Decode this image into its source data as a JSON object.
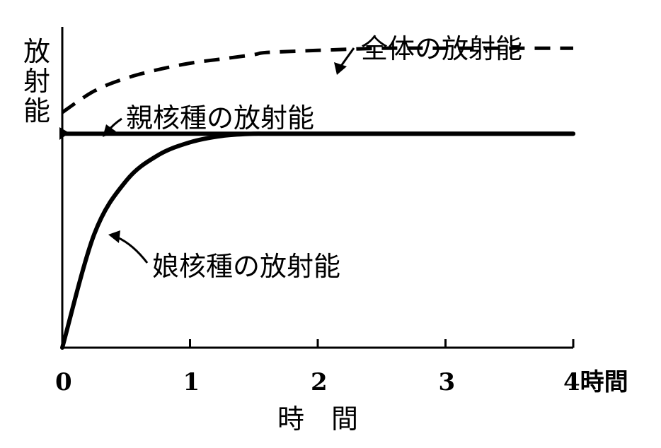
{
  "chart_data": {
    "type": "line",
    "x": [
      0,
      0.25,
      0.5,
      0.75,
      1,
      1.25,
      1.5,
      1.6,
      2,
      2.5,
      3,
      3.5,
      4
    ],
    "xticks": [
      "0",
      "1",
      "2",
      "3"
    ],
    "xlabel": "時　間",
    "xlabel_end": "4時間",
    "ylabel": "放射能",
    "xlim": [
      0,
      4
    ],
    "ylim": [
      0,
      1.5
    ],
    "series": [
      {
        "name": "全体の放射能",
        "style": "dashed",
        "values": [
          1.1,
          1.2,
          1.26,
          1.3,
          1.33,
          1.35,
          1.37,
          1.38,
          1.39,
          1.4,
          1.4,
          1.4,
          1.4
        ]
      },
      {
        "name": "親核種の放射能",
        "style": "solid",
        "values": [
          1.0,
          1.0,
          1.0,
          1.0,
          1.0,
          1.0,
          1.0,
          1.0,
          1.0,
          1.0,
          1.0,
          1.0,
          1.0
        ]
      },
      {
        "name": "娘核種の放射能",
        "style": "solid",
        "values": [
          0,
          0.53,
          0.78,
          0.9,
          0.96,
          0.99,
          1.0,
          1.0,
          1.0,
          1.0,
          1.0,
          1.0,
          1.0
        ]
      }
    ],
    "grid": false,
    "legend": "inline labels with arrows"
  }
}
